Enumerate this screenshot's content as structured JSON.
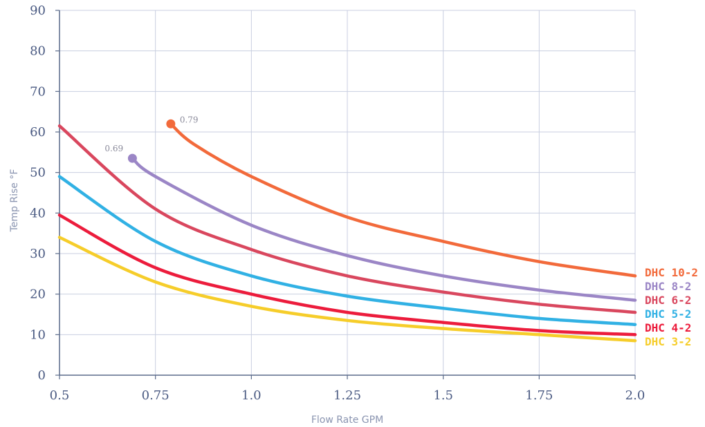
{
  "chart_data": {
    "type": "line",
    "title": "",
    "xlabel": "Flow Rate GPM",
    "ylabel": "Temp Rise °F",
    "xlim": [
      0.5,
      2.0
    ],
    "ylim": [
      0,
      90
    ],
    "x_ticks": [
      "0.5",
      "0.75",
      "1.0",
      "1.25",
      "1.5",
      "1.75",
      "2.0"
    ],
    "y_ticks": [
      "0",
      "10",
      "20",
      "30",
      "40",
      "50",
      "60",
      "70",
      "80",
      "90"
    ],
    "grid": true,
    "legend_position": "right",
    "series": [
      {
        "name": "DHC 10-2",
        "color": "#f26a3b",
        "x": [
          0.79,
          0.85,
          1.0,
          1.25,
          1.5,
          1.75,
          2.0
        ],
        "y": [
          62,
          57,
          49,
          39,
          33,
          28,
          24.5
        ],
        "start_marker": true,
        "start_label": "0.79"
      },
      {
        "name": "DHC 8-2",
        "color": "#9b86c6",
        "x": [
          0.69,
          0.75,
          1.0,
          1.25,
          1.5,
          1.75,
          2.0
        ],
        "y": [
          53.5,
          49,
          37,
          29.5,
          24.5,
          21,
          18.5
        ],
        "start_marker": true,
        "start_label": "0.69"
      },
      {
        "name": "DHC 6-2",
        "color": "#d9475e",
        "x": [
          0.5,
          0.75,
          1.0,
          1.25,
          1.5,
          1.75,
          2.0
        ],
        "y": [
          61.5,
          41,
          31,
          24.5,
          20.5,
          17.5,
          15.5
        ]
      },
      {
        "name": "DHC 5-2",
        "color": "#31b1e4",
        "x": [
          0.5,
          0.75,
          1.0,
          1.25,
          1.5,
          1.75,
          2.0
        ],
        "y": [
          49,
          33,
          24.5,
          19.5,
          16.5,
          14,
          12.5
        ]
      },
      {
        "name": "DHC 4-2",
        "color": "#ec1c3c",
        "x": [
          0.5,
          0.75,
          1.0,
          1.25,
          1.5,
          1.75,
          2.0
        ],
        "y": [
          39.5,
          26.5,
          20,
          15.5,
          13,
          11,
          10
        ]
      },
      {
        "name": "DHC 3-2",
        "color": "#f6cd2a",
        "x": [
          0.5,
          0.75,
          1.0,
          1.25,
          1.5,
          1.75,
          2.0
        ],
        "y": [
          34,
          23,
          17,
          13.5,
          11.5,
          10,
          8.5
        ]
      }
    ]
  }
}
